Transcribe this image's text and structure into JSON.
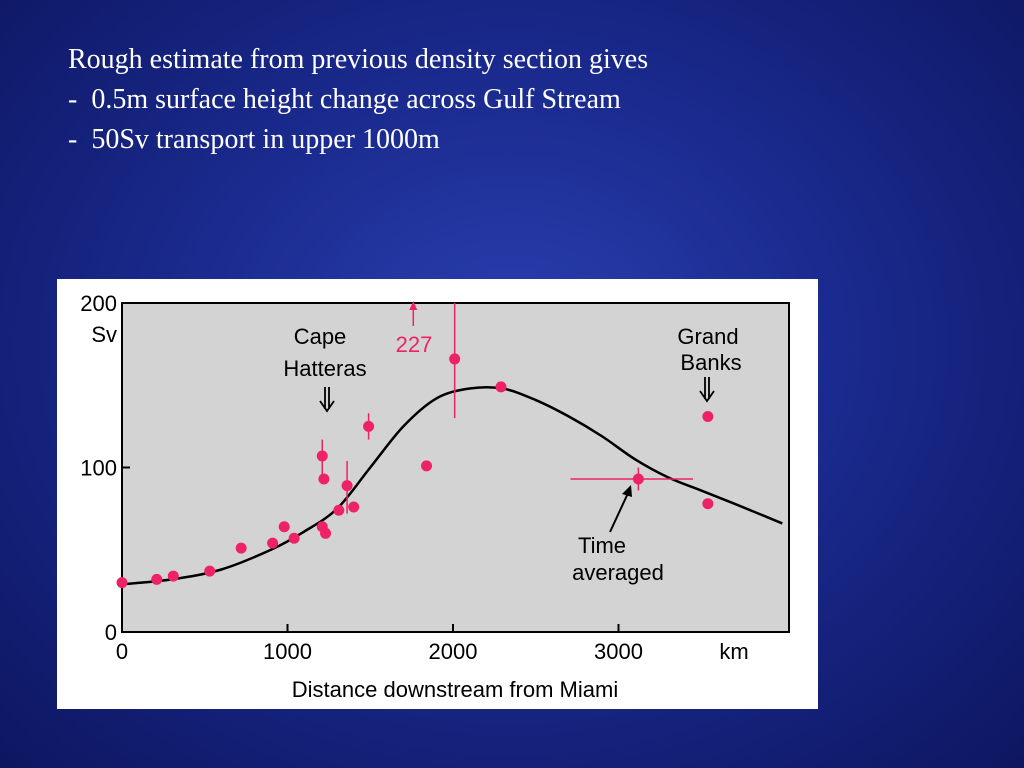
{
  "slide": {
    "lines": [
      "Rough estimate from previous density section gives",
      "-  0.5m surface height change across Gulf Stream",
      "-  50Sv transport in upper 1000m"
    ]
  },
  "colors": {
    "background": "#1a2a8e",
    "text": "#ffffff",
    "plot_area": "#d3d3d3",
    "points": "#ee2266",
    "curve": "#000000"
  },
  "chart_data": {
    "type": "scatter",
    "xlim": [
      0,
      4000
    ],
    "ylim": [
      0,
      200
    ],
    "x_ticks": [
      0,
      1000,
      2000,
      3000
    ],
    "x_tick_labels": [
      "0",
      "1000",
      "2000",
      "3000"
    ],
    "x_unit": "km",
    "y_ticks": [
      0,
      100,
      200
    ],
    "y_tick_labels": [
      "0",
      "100",
      "200"
    ],
    "y_unit": "Sv",
    "xlabel": "Distance downstream from Miami",
    "grid": false,
    "points": [
      {
        "x": 0,
        "y": 30
      },
      {
        "x": 210,
        "y": 32
      },
      {
        "x": 310,
        "y": 34
      },
      {
        "x": 530,
        "y": 37
      },
      {
        "x": 720,
        "y": 51
      },
      {
        "x": 910,
        "y": 54
      },
      {
        "x": 980,
        "y": 64
      },
      {
        "x": 1040,
        "y": 57
      },
      {
        "x": 1210,
        "y": 64
      },
      {
        "x": 1210,
        "y": 107,
        "err_low": 96,
        "err_high": 117
      },
      {
        "x": 1220,
        "y": 93
      },
      {
        "x": 1230,
        "y": 60
      },
      {
        "x": 1310,
        "y": 74
      },
      {
        "x": 1360,
        "y": 89,
        "err_low": 72,
        "err_high": 104
      },
      {
        "x": 1400,
        "y": 76
      },
      {
        "x": 1490,
        "y": 125,
        "err_low": 117,
        "err_high": 133
      },
      {
        "x": 1840,
        "y": 101
      },
      {
        "x": 2010,
        "y": 166,
        "err_low": 130,
        "err_high": 200
      },
      {
        "x": 2290,
        "y": 149
      },
      {
        "x": 3120,
        "y": 93,
        "err_low": 86,
        "err_high": 100,
        "xerr_low": 2710,
        "xerr_high": 3450
      },
      {
        "x": 3540,
        "y": 131
      },
      {
        "x": 3540,
        "y": 78
      }
    ],
    "offscale_point": {
      "x": 1760,
      "label": "227"
    },
    "curve": {
      "x": [
        0,
        300,
        600,
        900,
        1100,
        1300,
        1500,
        1700,
        1900,
        2100,
        2300,
        2500,
        2700,
        2900,
        3100,
        3300,
        3500,
        3700,
        3990
      ],
      "y": [
        29,
        32,
        38,
        50,
        61,
        75,
        100,
        125,
        142,
        148,
        148,
        141,
        131,
        119,
        105,
        94,
        86,
        78,
        66
      ]
    },
    "annotations": [
      {
        "text_lines": [
          "Cape",
          "Hatteras"
        ],
        "arrow": "down",
        "x": 1240,
        "color": "#000000"
      },
      {
        "text_lines": [
          "Grand",
          "Banks"
        ],
        "arrow": "down",
        "x": 3500,
        "color": "#000000"
      },
      {
        "text_lines": [
          "Time",
          "averaged"
        ],
        "arrow": "to-point",
        "x": 3120,
        "color": "#000000"
      },
      {
        "text_lines": [
          "227"
        ],
        "arrow": "up",
        "x": 1760,
        "color": "#ee2266"
      }
    ]
  }
}
